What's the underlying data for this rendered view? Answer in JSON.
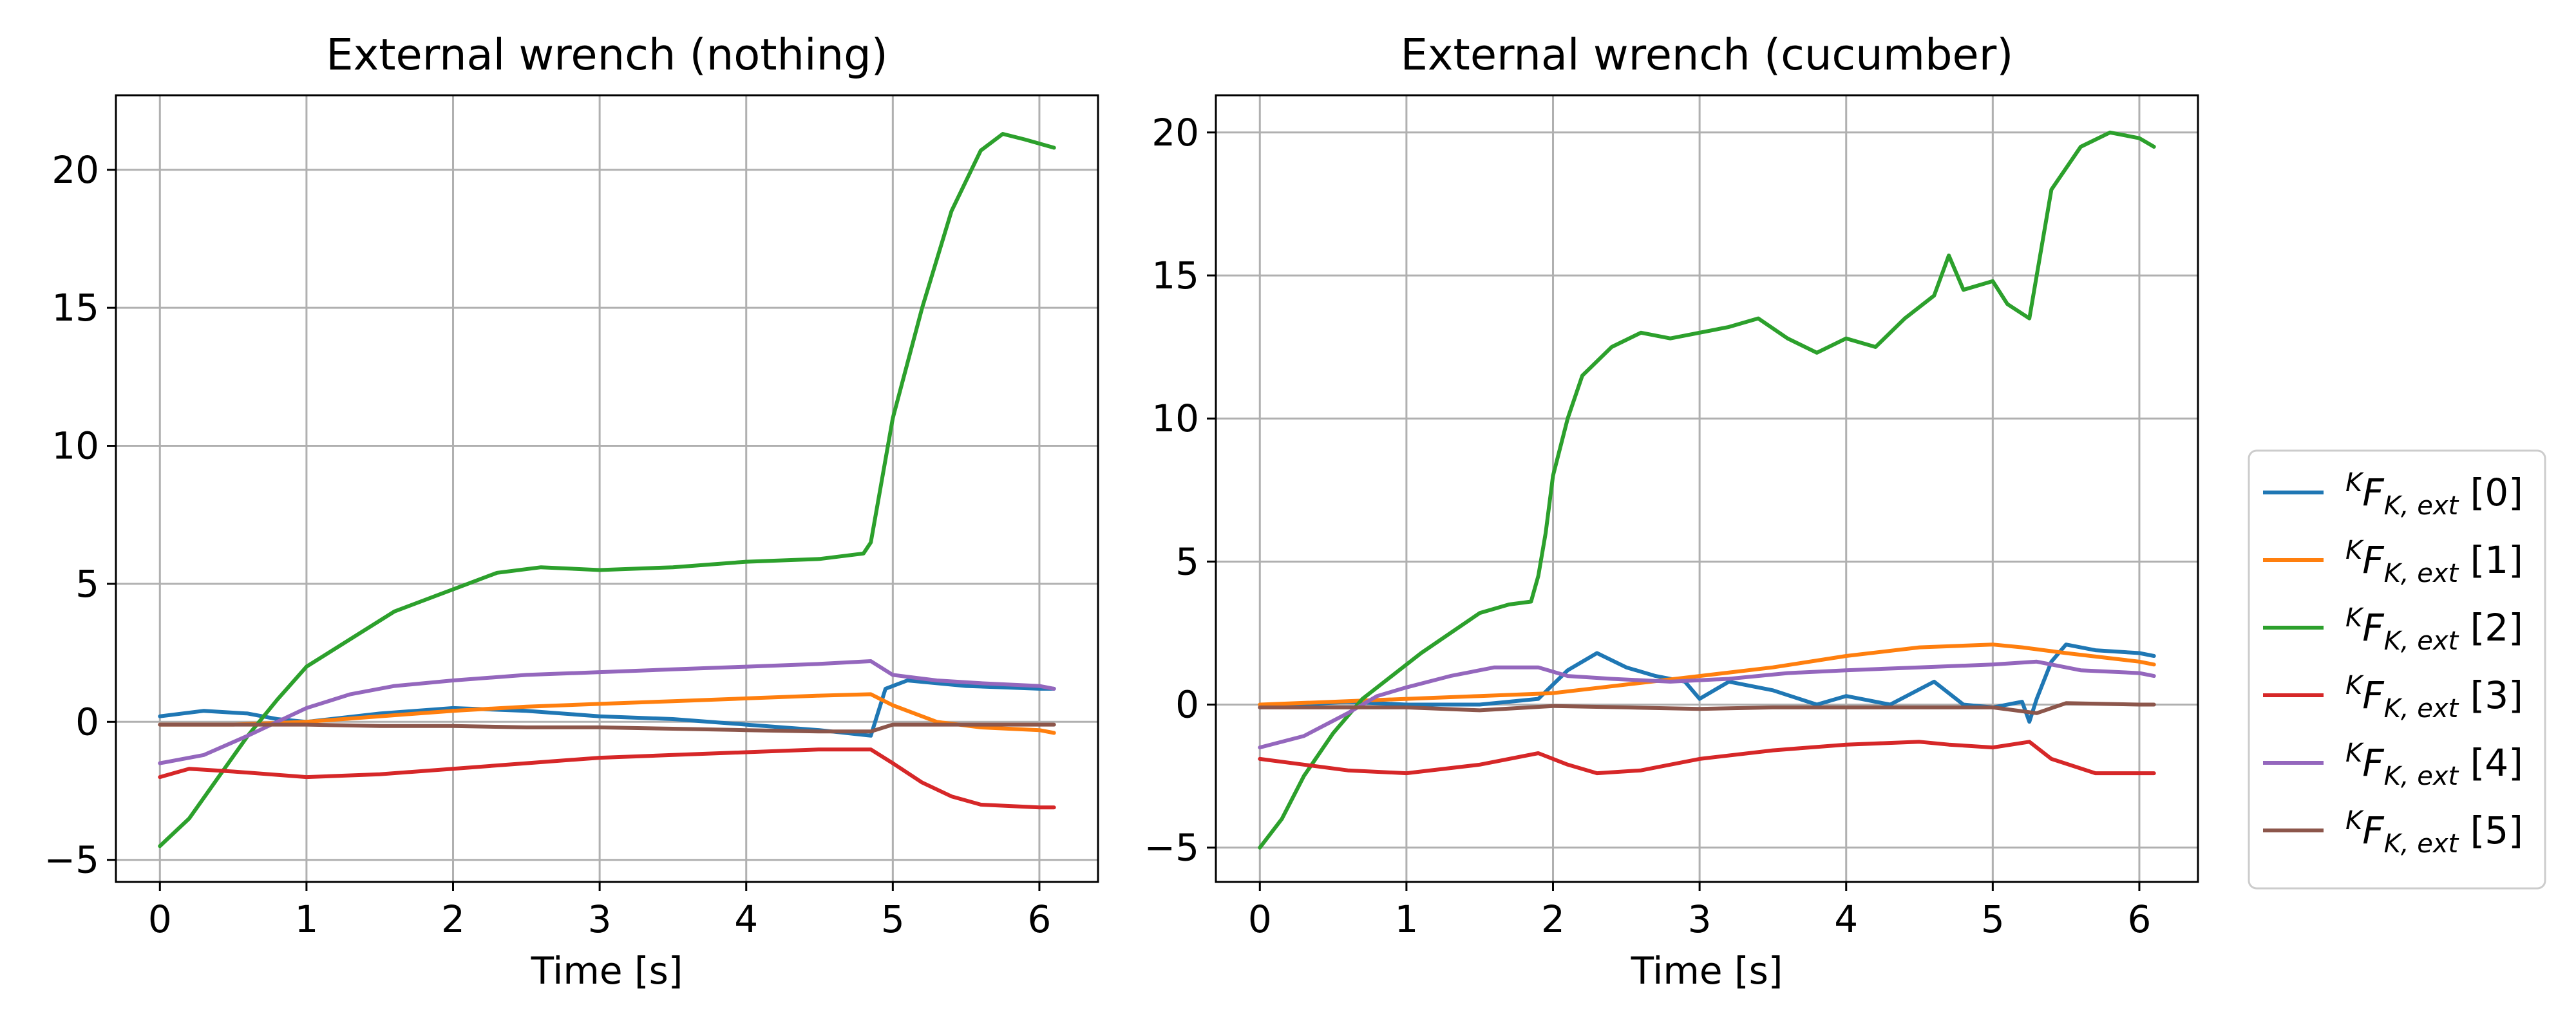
{
  "chart_data": [
    {
      "type": "line",
      "title": "External wrench (nothing)",
      "xlabel": "Time [s]",
      "ylabel": "",
      "xlim": [
        -0.3,
        6.4
      ],
      "ylim": [
        -5.8,
        22.7
      ],
      "xticks": [
        0,
        1,
        2,
        3,
        4,
        5,
        6
      ],
      "xtick_labels": [
        "0",
        "1",
        "2",
        "3",
        "4",
        "5",
        "6"
      ],
      "yticks": [
        -5,
        0,
        5,
        10,
        15,
        20
      ],
      "ytick_labels": [
        "−5",
        "0",
        "5",
        "10",
        "15",
        "20"
      ],
      "grid": true,
      "series": [
        {
          "name": "[0]",
          "color": "#1f77b4",
          "x": [
            0,
            0.3,
            0.6,
            0.8,
            1,
            1.5,
            2,
            2.5,
            3,
            3.5,
            4,
            4.5,
            4.85,
            4.95,
            5.1,
            5.5,
            6,
            6.1
          ],
          "y": [
            0.2,
            0.4,
            0.3,
            0.1,
            0,
            0.3,
            0.5,
            0.4,
            0.2,
            0.1,
            -0.1,
            -0.3,
            -0.5,
            1.2,
            1.5,
            1.3,
            1.2,
            1.2
          ]
        },
        {
          "name": "[1]",
          "color": "#ff7f0e",
          "x": [
            0,
            0.5,
            1,
            1.5,
            2,
            2.5,
            3,
            3.5,
            4,
            4.5,
            4.85,
            5,
            5.3,
            5.6,
            6,
            6.1
          ],
          "y": [
            -0.1,
            -0.1,
            0,
            0.2,
            0.4,
            0.55,
            0.65,
            0.75,
            0.85,
            0.95,
            1,
            0.6,
            0,
            -0.2,
            -0.3,
            -0.4
          ]
        },
        {
          "name": "[2]",
          "color": "#2ca02c",
          "x": [
            0,
            0.2,
            0.4,
            0.6,
            0.8,
            1,
            1.3,
            1.6,
            1.9,
            2.1,
            2.3,
            2.6,
            3,
            3.5,
            4,
            4.5,
            4.8,
            4.85,
            4.9,
            5,
            5.2,
            5.4,
            5.6,
            5.75,
            5.9,
            6.1
          ],
          "y": [
            -4.5,
            -3.5,
            -2,
            -0.5,
            0.8,
            2,
            3,
            4,
            4.6,
            5,
            5.4,
            5.6,
            5.5,
            5.6,
            5.8,
            5.9,
            6.1,
            6.5,
            8,
            11,
            15,
            18.5,
            20.7,
            21.3,
            21.1,
            20.8
          ]
        },
        {
          "name": "[3]",
          "color": "#d62728",
          "x": [
            0,
            0.2,
            0.5,
            1,
            1.5,
            2,
            2.5,
            3,
            3.5,
            4,
            4.5,
            4.85,
            5,
            5.2,
            5.4,
            5.6,
            6,
            6.1
          ],
          "y": [
            -2,
            -1.7,
            -1.8,
            -2,
            -1.9,
            -1.7,
            -1.5,
            -1.3,
            -1.2,
            -1.1,
            -1,
            -1,
            -1.5,
            -2.2,
            -2.7,
            -3,
            -3.1,
            -3.1
          ]
        },
        {
          "name": "[4]",
          "color": "#9467bd",
          "x": [
            0,
            0.3,
            0.6,
            0.8,
            1,
            1.3,
            1.6,
            2,
            2.5,
            3,
            3.5,
            4,
            4.5,
            4.85,
            5,
            5.3,
            5.6,
            6,
            6.1
          ],
          "y": [
            -1.5,
            -1.2,
            -0.5,
            0,
            0.5,
            1,
            1.3,
            1.5,
            1.7,
            1.8,
            1.9,
            2,
            2.1,
            2.2,
            1.7,
            1.5,
            1.4,
            1.3,
            1.2
          ]
        },
        {
          "name": "[5]",
          "color": "#8c564b",
          "x": [
            0,
            0.5,
            1,
            1.5,
            2,
            2.5,
            3,
            3.5,
            4,
            4.5,
            4.85,
            5,
            5.5,
            6,
            6.1
          ],
          "y": [
            -0.1,
            -0.1,
            -0.1,
            -0.15,
            -0.15,
            -0.2,
            -0.2,
            -0.25,
            -0.3,
            -0.35,
            -0.35,
            -0.1,
            -0.1,
            -0.1,
            -0.1
          ]
        }
      ]
    },
    {
      "type": "line",
      "title": "External wrench (cucumber)",
      "xlabel": "Time [s]",
      "ylabel": "",
      "xlim": [
        -0.3,
        6.4
      ],
      "ylim": [
        -6.2,
        21.3
      ],
      "xticks": [
        0,
        1,
        2,
        3,
        4,
        5,
        6
      ],
      "xtick_labels": [
        "0",
        "1",
        "2",
        "3",
        "4",
        "5",
        "6"
      ],
      "yticks": [
        -5,
        0,
        5,
        10,
        15,
        20
      ],
      "ytick_labels": [
        "−5",
        "0",
        "5",
        "10",
        "15",
        "20"
      ],
      "grid": true,
      "series": [
        {
          "name": "[0]",
          "color": "#1f77b4",
          "x": [
            0,
            0.3,
            0.6,
            1,
            1.5,
            1.9,
            2.1,
            2.3,
            2.5,
            2.7,
            2.9,
            3,
            3.2,
            3.5,
            3.8,
            4,
            4.3,
            4.6,
            4.8,
            5,
            5.2,
            5.25,
            5.3,
            5.4,
            5.5,
            5.7,
            6,
            6.1
          ],
          "y": [
            -0.1,
            0,
            0.1,
            0,
            0,
            0.2,
            1.2,
            1.8,
            1.3,
            1,
            0.8,
            0.2,
            0.8,
            0.5,
            0,
            0.3,
            0,
            0.8,
            0,
            -0.1,
            0.1,
            -0.6,
            0.2,
            1.5,
            2.1,
            1.9,
            1.8,
            1.7
          ]
        },
        {
          "name": "[1]",
          "color": "#ff7f0e",
          "x": [
            0,
            0.5,
            1,
            1.5,
            2,
            2.5,
            3,
            3.5,
            4,
            4.5,
            5,
            5.2,
            5.5,
            6,
            6.1
          ],
          "y": [
            0,
            0.1,
            0.2,
            0.3,
            0.4,
            0.7,
            1,
            1.3,
            1.7,
            2,
            2.1,
            2,
            1.8,
            1.5,
            1.4
          ]
        },
        {
          "name": "[2]",
          "color": "#2ca02c",
          "x": [
            0,
            0.15,
            0.3,
            0.5,
            0.7,
            0.9,
            1.1,
            1.3,
            1.5,
            1.7,
            1.85,
            1.9,
            1.95,
            2,
            2.1,
            2.2,
            2.4,
            2.6,
            2.8,
            3,
            3.2,
            3.4,
            3.6,
            3.8,
            4,
            4.2,
            4.4,
            4.6,
            4.7,
            4.8,
            5,
            5.1,
            5.25,
            5.3,
            5.4,
            5.6,
            5.8,
            6,
            6.1
          ],
          "y": [
            -5,
            -4,
            -2.5,
            -1,
            0.2,
            1,
            1.8,
            2.5,
            3.2,
            3.5,
            3.6,
            4.5,
            6,
            8,
            10,
            11.5,
            12.5,
            13,
            12.8,
            13,
            13.2,
            13.5,
            12.8,
            12.3,
            12.8,
            12.5,
            13.5,
            14.3,
            15.7,
            14.5,
            14.8,
            14,
            13.5,
            15,
            18,
            19.5,
            20,
            19.8,
            19.5
          ]
        },
        {
          "name": "[3]",
          "color": "#d62728",
          "x": [
            0,
            0.3,
            0.6,
            1,
            1.5,
            1.9,
            2.1,
            2.3,
            2.6,
            3,
            3.5,
            4,
            4.5,
            4.7,
            5,
            5.25,
            5.4,
            5.7,
            6,
            6.1
          ],
          "y": [
            -1.9,
            -2.1,
            -2.3,
            -2.4,
            -2.1,
            -1.7,
            -2.1,
            -2.4,
            -2.3,
            -1.9,
            -1.6,
            -1.4,
            -1.3,
            -1.4,
            -1.5,
            -1.3,
            -1.9,
            -2.4,
            -2.4,
            -2.4
          ]
        },
        {
          "name": "[4]",
          "color": "#9467bd",
          "x": [
            0,
            0.3,
            0.6,
            0.8,
            1,
            1.3,
            1.6,
            1.9,
            2.1,
            2.4,
            2.8,
            3.2,
            3.6,
            4,
            4.5,
            5,
            5.3,
            5.6,
            6,
            6.1
          ],
          "y": [
            -1.5,
            -1.1,
            -0.3,
            0.3,
            0.6,
            1,
            1.3,
            1.3,
            1,
            0.9,
            0.8,
            0.9,
            1.1,
            1.2,
            1.3,
            1.4,
            1.5,
            1.2,
            1.1,
            1
          ]
        },
        {
          "name": "[5]",
          "color": "#8c564b",
          "x": [
            0,
            0.5,
            1,
            1.5,
            2,
            2.5,
            3,
            3.5,
            4,
            4.5,
            5,
            5.3,
            5.5,
            6,
            6.1
          ],
          "y": [
            -0.1,
            -0.1,
            -0.1,
            -0.2,
            -0.05,
            -0.1,
            -0.15,
            -0.1,
            -0.1,
            -0.1,
            -0.1,
            -0.3,
            0.05,
            0,
            0
          ]
        }
      ]
    }
  ],
  "legend": {
    "placement": "right",
    "label_prefix_sup": "K",
    "label_main": "F",
    "label_sub": "K, ext",
    "entries": [
      {
        "index": "[0]",
        "color": "#1f77b4"
      },
      {
        "index": "[1]",
        "color": "#ff7f0e"
      },
      {
        "index": "[2]",
        "color": "#2ca02c"
      },
      {
        "index": "[3]",
        "color": "#d62728"
      },
      {
        "index": "[4]",
        "color": "#9467bd"
      },
      {
        "index": "[5]",
        "color": "#8c564b"
      }
    ]
  }
}
